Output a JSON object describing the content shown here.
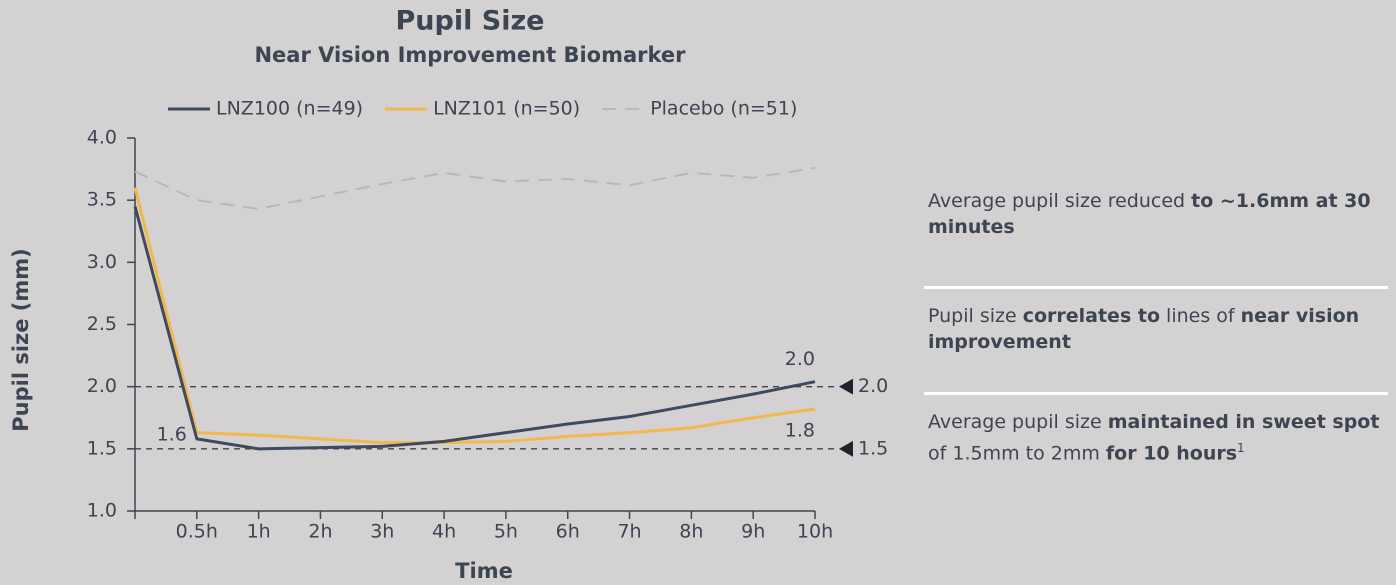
{
  "chart_data": {
    "type": "line",
    "title": "Pupil Size",
    "subtitle": "Near Vision Improvement Biomarker",
    "ylabel": "Pupil size (mm)",
    "xlabel": "Time",
    "categories": [
      null,
      "0.5h",
      "1h",
      "2h",
      "3h",
      "4h",
      "5h",
      "6h",
      "7h",
      "8h",
      "9h",
      "10h"
    ],
    "ylim": [
      1,
      4
    ],
    "yticks": [
      {
        "value": 1,
        "label": "1.0"
      },
      {
        "value": 1.5,
        "label": "1.5"
      },
      {
        "value": 2,
        "label": "2.0"
      },
      {
        "value": 2.5,
        "label": "2.5"
      },
      {
        "value": 3,
        "label": "3.0"
      },
      {
        "value": 3.5,
        "label": "3.5"
      },
      {
        "value": 4,
        "label": "4.0"
      }
    ],
    "series": [
      {
        "name": "LNZ100 (n=49)",
        "color": "#3e4a5e",
        "dash": false,
        "values": [
          3.45,
          1.58,
          1.5,
          1.51,
          1.52,
          1.56,
          1.63,
          1.7,
          1.76,
          1.85,
          1.94,
          2.04
        ],
        "value_labels": [
          null,
          "1.6",
          null,
          null,
          null,
          null,
          null,
          null,
          null,
          null,
          null,
          "2.0"
        ]
      },
      {
        "name": "LNZ101 (n=50)",
        "color": "#f2b84b",
        "dash": false,
        "values": [
          3.6,
          1.63,
          1.61,
          1.58,
          1.55,
          1.55,
          1.56,
          1.6,
          1.63,
          1.67,
          1.75,
          1.82
        ],
        "value_labels": [
          null,
          null,
          null,
          null,
          null,
          null,
          null,
          null,
          null,
          null,
          null,
          "1.8"
        ]
      },
      {
        "name": "Placebo (n=51)",
        "color": "#b8b8b8",
        "dash": true,
        "values": [
          3.73,
          3.5,
          3.43,
          3.53,
          3.63,
          3.72,
          3.65,
          3.67,
          3.62,
          3.72,
          3.68,
          3.76
        ]
      }
    ],
    "reference_lines": [
      {
        "value": 2,
        "label": "2.0"
      },
      {
        "value": 1.5,
        "label": "1.5"
      }
    ]
  },
  "notes": [
    [
      {
        "text": "Average pupil size reduced "
      },
      {
        "text": "to ~1.6mm at 30 minutes",
        "bold": true
      }
    ],
    [
      {
        "text": "Pupil size "
      },
      {
        "text": "correlates to",
        "bold": true
      },
      {
        "text": " lines of "
      },
      {
        "text": "near vision improvement",
        "bold": true
      }
    ],
    [
      {
        "text": "Average pupil size "
      },
      {
        "text": "maintained in sweet spot",
        "bold": true
      },
      {
        "text": " of 1.5mm to 2mm "
      },
      {
        "text": "for 10 hours",
        "bold": true
      },
      {
        "text": "1",
        "sup": true
      }
    ]
  ]
}
